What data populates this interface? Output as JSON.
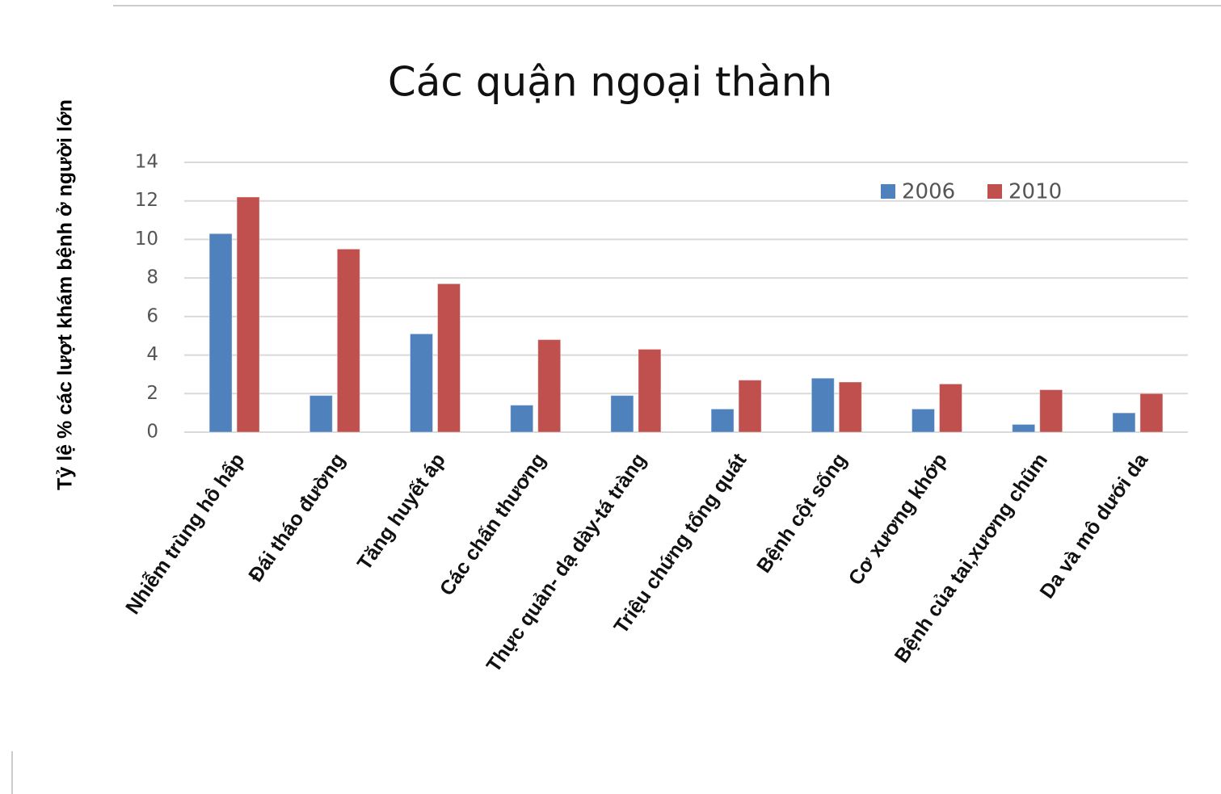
{
  "chart_data": {
    "type": "bar",
    "title": "Các quận ngoại thành",
    "y_label": "Tỷ lệ % các lượt khám bệnh ở người lớn",
    "categories": [
      "Nhiễm trùng hô hấp",
      "Đái tháo đường",
      "Tăng huyết áp",
      "Các chấn thương",
      "Thực quản- dạ dày-tá tràng",
      "Triệu chứng tổng quát",
      "Bệnh cột sống",
      "Cơ xương khớp",
      "Bệnh  của tai,xương chũm",
      "Da và mô dưới da"
    ],
    "series": [
      {
        "name": "2006",
        "color": "#4f81bd",
        "values": [
          10.3,
          1.9,
          5.1,
          1.4,
          1.9,
          1.2,
          2.8,
          1.2,
          0.4,
          1.0
        ]
      },
      {
        "name": "2010",
        "color": "#c0504d",
        "values": [
          12.2,
          9.5,
          7.7,
          4.8,
          4.3,
          2.7,
          2.6,
          2.5,
          2.2,
          2.0
        ]
      }
    ],
    "ylim": [
      0,
      14
    ],
    "yticks": [
      0,
      2,
      4,
      6,
      8,
      10,
      12,
      14
    ],
    "grid": true,
    "legend": "top-right"
  }
}
